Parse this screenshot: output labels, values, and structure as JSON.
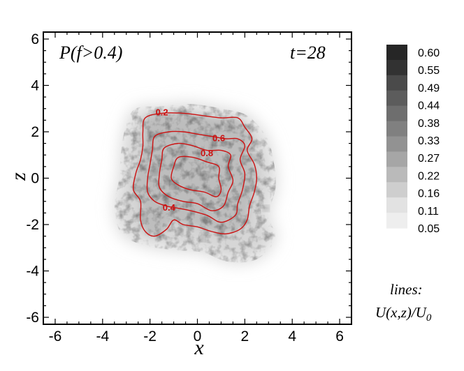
{
  "chart_data": {
    "type": "heatmap",
    "title": "P(f>0.4)",
    "annotation": "t=28",
    "xlabel": "x",
    "ylabel": "z",
    "xlim": [
      -6.5,
      6.5
    ],
    "ylim": [
      -6.3,
      6.3
    ],
    "x_ticks": [
      "-6",
      "-4",
      "-2",
      "0",
      "2",
      "4",
      "6"
    ],
    "y_ticks": [
      "6",
      "4",
      "2",
      "0",
      "-2",
      "-4",
      "-6"
    ],
    "x_tick_values": [
      -6,
      -4,
      -2,
      0,
      2,
      4,
      6
    ],
    "y_tick_values": [
      6,
      4,
      2,
      0,
      -2,
      -4,
      -6
    ],
    "colorbar": {
      "levels": [
        "0.60",
        "0.55",
        "0.49",
        "0.44",
        "0.38",
        "0.33",
        "0.27",
        "0.22",
        "0.16",
        "0.11",
        "0.05"
      ],
      "colors": [
        "#262626",
        "#323232",
        "#4a4a4a",
        "#5c5c5c",
        "#6e6e6e",
        "#808080",
        "#929292",
        "#a6a6a6",
        "#bababa",
        "#cecece",
        "#e2e2e2",
        "#eeeeee"
      ]
    },
    "contour_color": "#cc1111",
    "contours": [
      {
        "label": "0.2",
        "label_pos": [
          -1.5,
          2.7
        ],
        "points": [
          [
            -2.2,
            2.6
          ],
          [
            -1.5,
            2.8
          ],
          [
            -0.6,
            2.8
          ],
          [
            0.2,
            2.7
          ],
          [
            1.0,
            2.6
          ],
          [
            1.7,
            2.6
          ],
          [
            2.0,
            2.2
          ],
          [
            2.3,
            1.7
          ],
          [
            2.1,
            1.2
          ],
          [
            2.4,
            0.6
          ],
          [
            2.5,
            0.0
          ],
          [
            2.4,
            -0.6
          ],
          [
            2.2,
            -1.2
          ],
          [
            2.1,
            -1.8
          ],
          [
            1.8,
            -2.2
          ],
          [
            1.2,
            -2.4
          ],
          [
            0.6,
            -2.3
          ],
          [
            0.0,
            -2.1
          ],
          [
            -0.6,
            -2.0
          ],
          [
            -1.0,
            -1.8
          ],
          [
            -1.3,
            -2.2
          ],
          [
            -1.8,
            -2.5
          ],
          [
            -2.2,
            -2.3
          ],
          [
            -2.4,
            -1.8
          ],
          [
            -2.4,
            -1.0
          ],
          [
            -2.7,
            -0.5
          ],
          [
            -2.6,
            0.2
          ],
          [
            -2.4,
            0.8
          ],
          [
            -2.3,
            1.4
          ],
          [
            -2.3,
            2.0
          ],
          [
            -2.2,
            2.6
          ]
        ]
      },
      {
        "label": "0.4",
        "label_pos": [
          -1.2,
          -1.4
        ],
        "points": [
          [
            -1.8,
            1.8
          ],
          [
            -1.2,
            2.0
          ],
          [
            -0.6,
            2.0
          ],
          [
            0.0,
            1.9
          ],
          [
            0.6,
            1.8
          ],
          [
            1.2,
            1.7
          ],
          [
            1.7,
            1.7
          ],
          [
            2.0,
            1.4
          ],
          [
            1.8,
            0.8
          ],
          [
            2.0,
            0.2
          ],
          [
            1.9,
            -0.5
          ],
          [
            1.7,
            -1.1
          ],
          [
            1.6,
            -1.6
          ],
          [
            1.0,
            -1.9
          ],
          [
            0.4,
            -1.6
          ],
          [
            -0.3,
            -1.4
          ],
          [
            -0.8,
            -1.3
          ],
          [
            -1.3,
            -1.2
          ],
          [
            -1.8,
            -1.0
          ],
          [
            -2.1,
            -0.6
          ],
          [
            -2.1,
            0.0
          ],
          [
            -2.0,
            0.6
          ],
          [
            -1.9,
            1.2
          ],
          [
            -1.8,
            1.8
          ]
        ]
      },
      {
        "label": "0.6",
        "label_pos": [
          0.9,
          1.6
        ],
        "points": [
          [
            -1.4,
            1.3
          ],
          [
            -0.8,
            1.5
          ],
          [
            -0.2,
            1.4
          ],
          [
            0.4,
            1.2
          ],
          [
            1.0,
            1.2
          ],
          [
            1.4,
            1.0
          ],
          [
            1.3,
            0.5
          ],
          [
            1.5,
            -0.1
          ],
          [
            1.3,
            -0.6
          ],
          [
            1.1,
            -1.2
          ],
          [
            0.6,
            -1.4
          ],
          [
            0.0,
            -1.1
          ],
          [
            -0.6,
            -1.0
          ],
          [
            -1.2,
            -0.8
          ],
          [
            -1.6,
            -0.4
          ],
          [
            -1.6,
            0.2
          ],
          [
            -1.5,
            0.8
          ],
          [
            -1.4,
            1.3
          ]
        ]
      },
      {
        "label": "0.8",
        "label_pos": [
          0.4,
          0.95
        ],
        "points": [
          [
            -0.8,
            0.9
          ],
          [
            -0.2,
            0.9
          ],
          [
            0.4,
            0.7
          ],
          [
            0.9,
            0.5
          ],
          [
            0.9,
            0.0
          ],
          [
            1.0,
            -0.5
          ],
          [
            0.8,
            -0.8
          ],
          [
            0.3,
            -0.6
          ],
          [
            -0.3,
            -0.5
          ],
          [
            -0.8,
            -0.3
          ],
          [
            -1.1,
            0.0
          ],
          [
            -1.0,
            0.5
          ],
          [
            -0.8,
            0.9
          ]
        ]
      }
    ],
    "legend_note": [
      "lines:",
      "U(x,z)/U",
      "0"
    ]
  }
}
